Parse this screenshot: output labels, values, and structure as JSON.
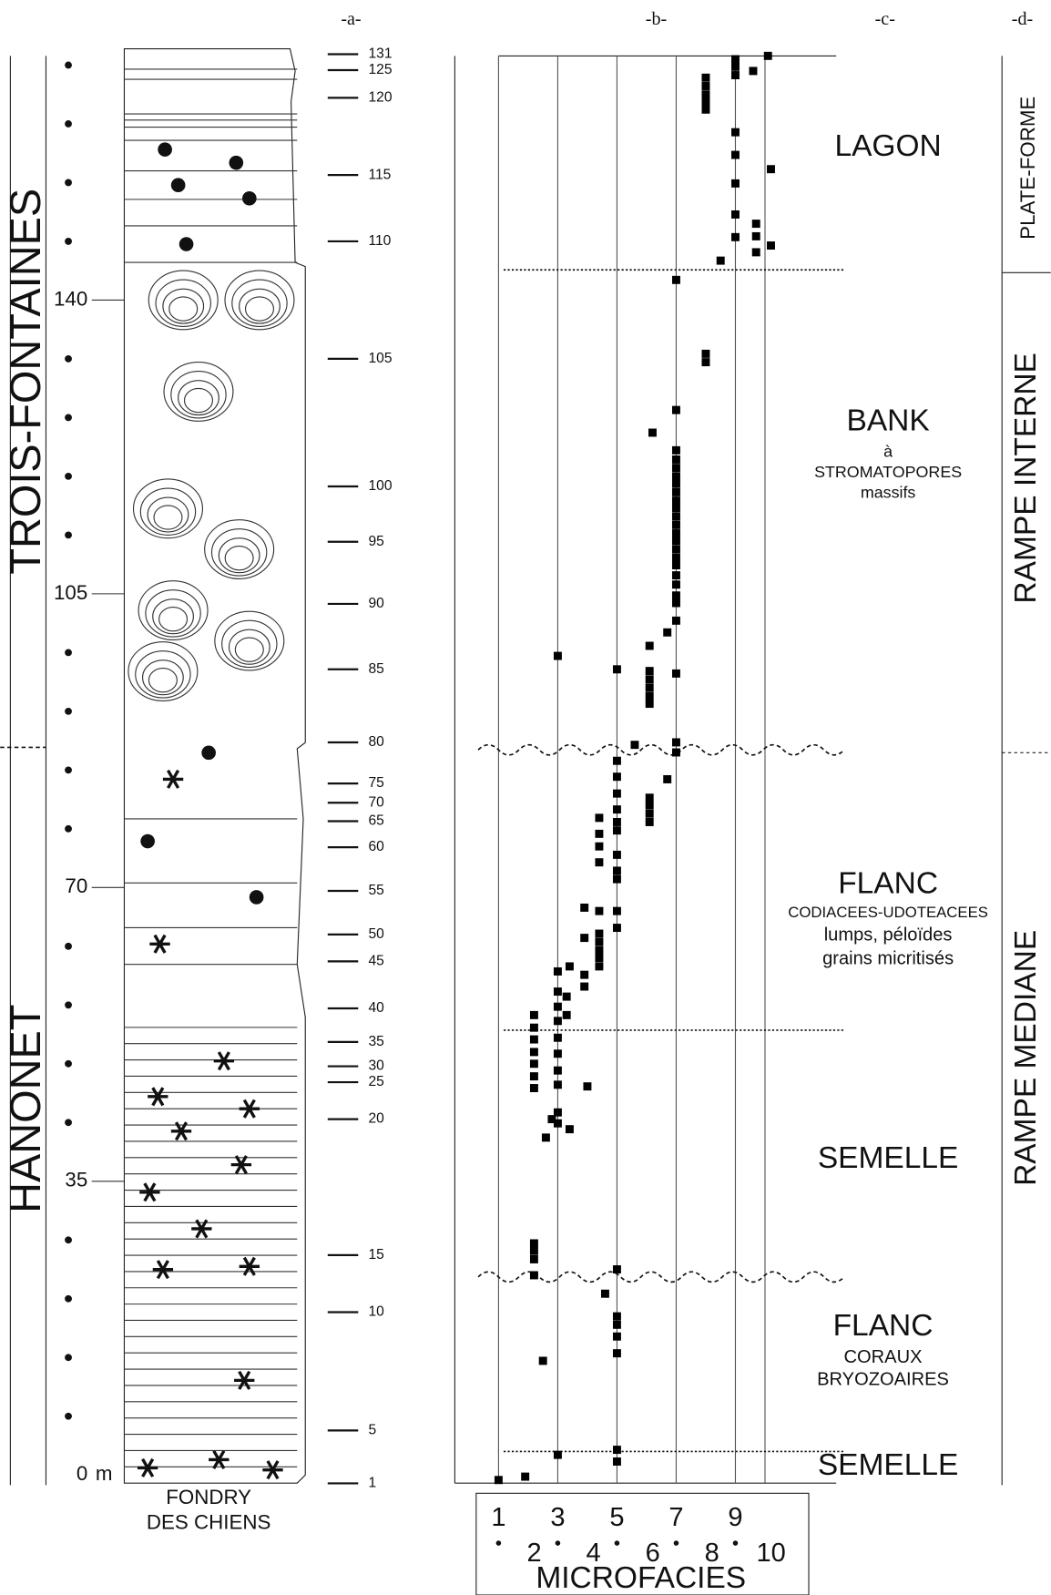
{
  "column_headers": [
    "-a-",
    "-b-",
    "-c-",
    "-d-"
  ],
  "formations": [
    {
      "name": "TROIS-FONTAINES"
    },
    {
      "name": "HANONET"
    }
  ],
  "formation_boundary_height": 86.7,
  "section_name": [
    "FONDRY",
    "DES CHIENS"
  ],
  "environments": {
    "lagon": "LAGON",
    "bank": [
      "BANK",
      "à",
      "STROMATOPORES",
      "massifs"
    ],
    "flanc_upper": [
      "FLANC",
      "CODIACEES-UDOTEACEES",
      "lumps, péloïdes",
      "grains micritisés"
    ],
    "semelle_upper": "SEMELLE",
    "flanc_lower": [
      "FLANC",
      "CORAUX",
      "BRYOZOAIRES"
    ],
    "semelle_lower": "SEMELLE"
  },
  "settings": [
    "PLATE-FORME",
    "RAMPE INTERNE",
    "RAMPE MEDIANE"
  ],
  "boundaries": [
    {
      "height": 143.6,
      "style": "dotted"
    },
    {
      "height": 86.4,
      "style": "wavy"
    },
    {
      "height": 53.0,
      "style": "dotted"
    },
    {
      "height": 23.6,
      "style": "wavy"
    },
    {
      "height": 2.8,
      "style": "dotted"
    }
  ],
  "samples": [
    {
      "number": 131,
      "height": 169.3
    },
    {
      "number": 125,
      "height": 167.4
    },
    {
      "number": 120,
      "height": 164.1
    },
    {
      "number": 115,
      "height": 154.9
    },
    {
      "number": 110,
      "height": 147.0
    },
    {
      "number": 105,
      "height": 133.0
    },
    {
      "number": 100,
      "height": 117.8
    },
    {
      "number": 95,
      "height": 111.2
    },
    {
      "number": 90,
      "height": 103.8
    },
    {
      "number": 85,
      "height": 96.0
    },
    {
      "number": 80,
      "height": 87.3
    },
    {
      "number": 75,
      "height": 82.4
    },
    {
      "number": 70,
      "height": 80.1
    },
    {
      "number": 65,
      "height": 77.9
    },
    {
      "number": 60,
      "height": 74.8
    },
    {
      "number": 55,
      "height": 69.6
    },
    {
      "number": 50,
      "height": 64.4
    },
    {
      "number": 45,
      "height": 61.2
    },
    {
      "number": 40,
      "height": 55.6
    },
    {
      "number": 35,
      "height": 51.6
    },
    {
      "number": 30,
      "height": 48.7
    },
    {
      "number": 25,
      "height": 46.8
    },
    {
      "number": 20,
      "height": 42.4
    },
    {
      "number": 15,
      "height": 26.2
    },
    {
      "number": 10,
      "height": 19.4
    },
    {
      "number": 5,
      "height": 5.3
    },
    {
      "number": 1,
      "height": -1.0
    }
  ],
  "chart_data": {
    "type": "scatter",
    "x_label": "MICROFACIES",
    "y_unit": "m",
    "legend_numbers": [
      1,
      2,
      3,
      4,
      5,
      6,
      7,
      8,
      9,
      10
    ],
    "x": [
      10.1,
      9,
      9,
      9,
      9.6,
      8,
      8,
      8,
      8,
      8,
      9,
      9,
      10.2,
      9,
      9,
      9.7,
      9.7,
      9.7,
      10.2,
      9,
      8.5,
      7,
      8,
      8,
      7,
      6.2,
      7,
      7,
      7,
      7,
      7,
      7,
      7,
      7,
      7,
      7,
      7,
      7,
      7,
      7,
      7,
      7,
      7,
      7,
      7,
      7,
      6.7,
      6.1,
      3,
      5,
      6.1,
      6.1,
      6.1,
      6.1,
      6.1,
      7,
      7,
      7,
      5.6,
      5,
      5,
      5,
      6.7,
      6.1,
      6.1,
      6.1,
      6.1,
      5,
      5,
      5,
      4.4,
      4.4,
      4.4,
      5,
      5,
      5,
      4.4,
      3.9,
      4.4,
      5,
      5,
      4.4,
      4.4,
      4.4,
      4.4,
      4.4,
      3.9,
      3.4,
      3.9,
      3.9,
      3,
      3,
      3,
      3,
      3.3,
      3.3,
      2.2,
      2.2,
      2.2,
      2.2,
      2.2,
      2.2,
      2.2,
      3,
      3,
      3,
      3,
      4,
      3,
      3,
      2.8,
      3.4,
      2.6,
      2.2,
      2.2,
      2.2,
      2.2,
      5,
      4.6,
      5,
      5,
      5,
      5,
      2.5,
      3,
      5,
      5,
      1,
      1.9
    ],
    "values": [
      169.1,
      168.7,
      167.8,
      166.8,
      167.3,
      166.5,
      165.5,
      164.5,
      163.6,
      162.7,
      160,
      157.3,
      155.6,
      153.9,
      150.2,
      149.1,
      147.6,
      145.7,
      146.5,
      147.5,
      144.7,
      142.4,
      133.6,
      132.6,
      126.9,
      124.2,
      122.1,
      121.0,
      120.0,
      119.0,
      118.1,
      117.1,
      116.1,
      115.2,
      114.2,
      113.2,
      112.2,
      111.3,
      110.3,
      109.3,
      108.4,
      107.2,
      106.1,
      104.8,
      103.9,
      101.8,
      100.4,
      98.8,
      97.6,
      96.0,
      95.8,
      94.8,
      93.8,
      92.8,
      91.9,
      95.5,
      87.3,
      86.1,
      87.0,
      85.1,
      83.2,
      81.2,
      82.9,
      80.7,
      79.8,
      78.8,
      77.8,
      79.3,
      77.8,
      76.8,
      78.3,
      76.4,
      74.9,
      73.9,
      72.0,
      71.0,
      73.0,
      67.6,
      67.2,
      67.2,
      65.2,
      64.5,
      63.5,
      62.5,
      61.6,
      60.6,
      64.0,
      60.6,
      59.6,
      58.2,
      60.0,
      57.6,
      55.8,
      54.1,
      57.0,
      54.8,
      54.8,
      53.3,
      51.9,
      50.4,
      49.0,
      47.5,
      46.1,
      52.1,
      50.2,
      48.2,
      46.5,
      46.3,
      43.2,
      41.9,
      42.4,
      41.2,
      40.2,
      27.6,
      26.7,
      25.7,
      23.8,
      24.5,
      21.6,
      18.9,
      17.9,
      16.5,
      14.5,
      13.6,
      2.4,
      3.0,
      1.6,
      -0.6,
      -0.2
    ],
    "xlim": [
      1,
      10
    ],
    "xticks": [
      1,
      3,
      5,
      7,
      9,
      10
    ],
    "ylim": [
      -2,
      170
    ],
    "yticks": [
      0,
      35,
      70,
      105,
      140
    ],
    "minor_yticks": [
      7,
      14,
      21,
      28,
      42,
      49,
      56,
      63,
      77,
      84,
      91,
      98,
      112,
      119,
      126,
      133,
      147,
      154,
      161,
      168
    ],
    "color": "#000000",
    "grid": true
  }
}
